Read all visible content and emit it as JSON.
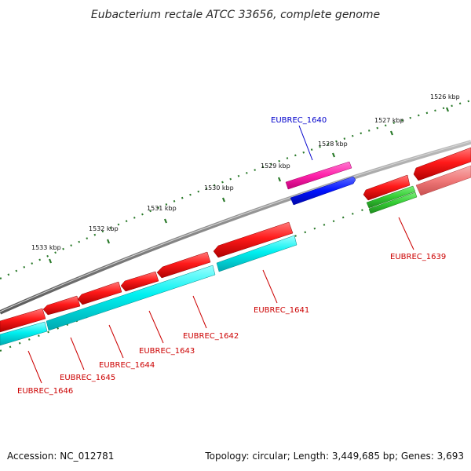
{
  "title": "Eubacterium rectale ATCC 33656, complete genome",
  "footer": {
    "accession": "Accession: NC_012781",
    "summary": "Topology: circular; Length: 3,449,685 bp; Genes: 3,693"
  },
  "scale_ticks": [
    "1526 kbp",
    "1527 kbp",
    "1528 kbp",
    "1529 kbp",
    "1530 kbp",
    "1531 kbp",
    "1532 kbp",
    "1533 kbp"
  ],
  "genes": [
    {
      "label": "EUBREC_1640",
      "color": "#0000cc"
    },
    {
      "label": "EUBREC_1639",
      "color": "#cc0000"
    },
    {
      "label": "EUBREC_1641",
      "color": "#cc0000"
    },
    {
      "label": "EUBREC_1642",
      "color": "#cc0000"
    },
    {
      "label": "EUBREC_1643",
      "color": "#cc0000"
    },
    {
      "label": "EUBREC_1644",
      "color": "#cc0000"
    },
    {
      "label": "EUBREC_1645",
      "color": "#cc0000"
    },
    {
      "label": "EUBREC_1646",
      "color": "#cc0000"
    }
  ],
  "colors": {
    "backbone": "#8c8c8c",
    "forward_cds": "#ff1111",
    "reverse_cds": "#00ffff",
    "pink_feature": "#ff22aa",
    "blue_feature": "#0011ff",
    "green_feature": "#33cc33",
    "light_red_feature": "#f07878",
    "tick_green": "#2a7a2a"
  }
}
